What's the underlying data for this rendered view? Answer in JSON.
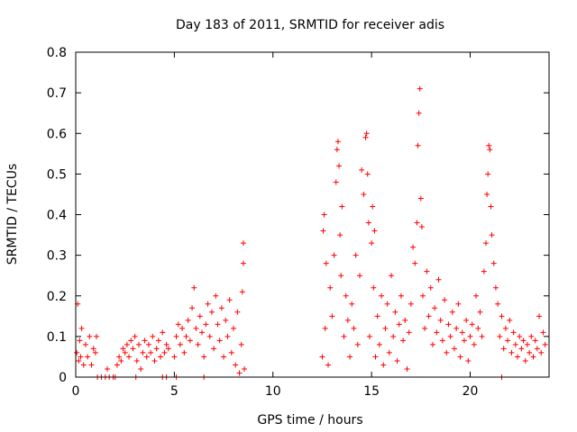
{
  "chart_data": {
    "type": "scatter",
    "title": "Day 183 of 2011, SRMTID for receiver adis",
    "xlabel": "GPS time / hours",
    "ylabel": "SRMTID / TECUs",
    "xlim": [
      0,
      24
    ],
    "ylim": [
      0,
      0.8
    ],
    "xticks": [
      0,
      5,
      10,
      15,
      20
    ],
    "yticks": [
      0,
      0.1,
      0.2,
      0.3,
      0.4,
      0.5,
      0.6,
      0.7,
      0.8
    ],
    "xtick_labels": [
      "0",
      "5",
      "10",
      "15",
      "20"
    ],
    "ytick_labels": [
      "0",
      "0.1",
      "0.2",
      "0.3",
      "0.4",
      "0.5",
      "0.6",
      "0.7",
      "0.8"
    ],
    "grid": false,
    "marker": "+",
    "series": [
      {
        "name": "SRMTID",
        "color": "#ff0000",
        "points": [
          [
            0.05,
            0.06
          ],
          [
            0.1,
            0.18
          ],
          [
            0.15,
            0.04
          ],
          [
            0.2,
            0.09
          ],
          [
            0.25,
            0.05
          ],
          [
            0.3,
            0.12
          ],
          [
            0.4,
            0.03
          ],
          [
            0.5,
            0.08
          ],
          [
            0.6,
            0.05
          ],
          [
            0.7,
            0.1
          ],
          [
            0.8,
            0.03
          ],
          [
            0.9,
            0.07
          ],
          [
            1.0,
            0.06
          ],
          [
            1.05,
            0.1
          ],
          [
            1.1,
            0.0
          ],
          [
            1.3,
            0.0
          ],
          [
            1.5,
            0.0
          ],
          [
            1.6,
            0.02
          ],
          [
            1.7,
            0.0
          ],
          [
            1.9,
            0.0
          ],
          [
            2.0,
            0.0
          ],
          [
            2.1,
            0.03
          ],
          [
            2.2,
            0.05
          ],
          [
            2.3,
            0.04
          ],
          [
            2.4,
            0.07
          ],
          [
            2.5,
            0.06
          ],
          [
            2.6,
            0.08
          ],
          [
            2.7,
            0.05
          ],
          [
            2.8,
            0.09
          ],
          [
            2.9,
            0.07
          ],
          [
            3.0,
            0.1
          ],
          [
            3.1,
            0.04
          ],
          [
            3.2,
            0.08
          ],
          [
            3.3,
            0.02
          ],
          [
            3.4,
            0.06
          ],
          [
            3.5,
            0.09
          ],
          [
            3.6,
            0.05
          ],
          [
            3.7,
            0.08
          ],
          [
            3.8,
            0.06
          ],
          [
            3.9,
            0.1
          ],
          [
            4.0,
            0.04
          ],
          [
            4.1,
            0.07
          ],
          [
            4.2,
            0.09
          ],
          [
            4.3,
            0.05
          ],
          [
            4.4,
            0.11
          ],
          [
            4.5,
            0.06
          ],
          [
            4.6,
            0.08
          ],
          [
            4.7,
            0.07
          ],
          [
            3.05,
            0.0
          ],
          [
            4.4,
            0.0
          ],
          [
            4.6,
            0.0
          ],
          [
            5.1,
            0.0
          ],
          [
            6.5,
            0.0
          ],
          [
            5.0,
            0.05
          ],
          [
            5.1,
            0.1
          ],
          [
            5.2,
            0.13
          ],
          [
            5.3,
            0.08
          ],
          [
            5.4,
            0.12
          ],
          [
            5.5,
            0.06
          ],
          [
            5.6,
            0.1
          ],
          [
            5.7,
            0.14
          ],
          [
            5.8,
            0.09
          ],
          [
            5.9,
            0.17
          ],
          [
            6.0,
            0.22
          ],
          [
            6.1,
            0.12
          ],
          [
            6.2,
            0.08
          ],
          [
            6.3,
            0.15
          ],
          [
            6.4,
            0.11
          ],
          [
            6.5,
            0.05
          ],
          [
            6.6,
            0.13
          ],
          [
            6.7,
            0.18
          ],
          [
            6.8,
            0.1
          ],
          [
            6.9,
            0.16
          ],
          [
            7.0,
            0.07
          ],
          [
            7.1,
            0.2
          ],
          [
            7.2,
            0.13
          ],
          [
            7.3,
            0.09
          ],
          [
            7.4,
            0.17
          ],
          [
            7.5,
            0.05
          ],
          [
            7.6,
            0.14
          ],
          [
            7.7,
            0.1
          ],
          [
            7.8,
            0.19
          ],
          [
            7.9,
            0.06
          ],
          [
            8.0,
            0.12
          ],
          [
            8.1,
            0.03
          ],
          [
            8.2,
            0.16
          ],
          [
            8.3,
            0.01
          ],
          [
            8.4,
            0.08
          ],
          [
            8.45,
            0.21
          ],
          [
            8.5,
            0.33
          ],
          [
            8.5,
            0.28
          ],
          [
            8.55,
            0.02
          ],
          [
            12.5,
            0.05
          ],
          [
            12.55,
            0.36
          ],
          [
            12.6,
            0.4
          ],
          [
            12.65,
            0.12
          ],
          [
            12.7,
            0.28
          ],
          [
            12.8,
            0.03
          ],
          [
            12.9,
            0.22
          ],
          [
            13.0,
            0.15
          ],
          [
            13.1,
            0.3
          ],
          [
            13.2,
            0.48
          ],
          [
            13.25,
            0.56
          ],
          [
            13.3,
            0.58
          ],
          [
            13.35,
            0.52
          ],
          [
            13.4,
            0.35
          ],
          [
            13.45,
            0.25
          ],
          [
            13.5,
            0.42
          ],
          [
            13.6,
            0.1
          ],
          [
            13.7,
            0.2
          ],
          [
            13.8,
            0.14
          ],
          [
            13.9,
            0.05
          ],
          [
            14.0,
            0.18
          ],
          [
            14.1,
            0.12
          ],
          [
            14.2,
            0.3
          ],
          [
            14.3,
            0.08
          ],
          [
            14.4,
            0.25
          ],
          [
            14.5,
            0.51
          ],
          [
            14.6,
            0.45
          ],
          [
            14.7,
            0.59
          ],
          [
            14.75,
            0.6
          ],
          [
            14.8,
            0.5
          ],
          [
            14.85,
            0.38
          ],
          [
            14.9,
            0.1
          ],
          [
            15.0,
            0.33
          ],
          [
            15.05,
            0.42
          ],
          [
            15.1,
            0.22
          ],
          [
            15.15,
            0.36
          ],
          [
            15.2,
            0.05
          ],
          [
            15.3,
            0.15
          ],
          [
            15.4,
            0.08
          ],
          [
            15.5,
            0.2
          ],
          [
            15.6,
            0.03
          ],
          [
            15.7,
            0.12
          ],
          [
            15.8,
            0.18
          ],
          [
            15.9,
            0.06
          ],
          [
            16.0,
            0.25
          ],
          [
            16.1,
            0.1
          ],
          [
            16.2,
            0.16
          ],
          [
            16.3,
            0.04
          ],
          [
            16.4,
            0.13
          ],
          [
            16.5,
            0.2
          ],
          [
            16.6,
            0.09
          ],
          [
            16.7,
            0.14
          ],
          [
            16.8,
            0.02
          ],
          [
            16.9,
            0.11
          ],
          [
            17.0,
            0.18
          ],
          [
            17.1,
            0.32
          ],
          [
            17.2,
            0.28
          ],
          [
            17.3,
            0.38
          ],
          [
            17.35,
            0.57
          ],
          [
            17.4,
            0.65
          ],
          [
            17.45,
            0.71
          ],
          [
            17.5,
            0.44
          ],
          [
            17.55,
            0.37
          ],
          [
            17.6,
            0.2
          ],
          [
            17.7,
            0.12
          ],
          [
            17.8,
            0.26
          ],
          [
            17.9,
            0.15
          ],
          [
            18.0,
            0.22
          ],
          [
            18.1,
            0.08
          ],
          [
            18.2,
            0.17
          ],
          [
            18.3,
            0.11
          ],
          [
            18.4,
            0.24
          ],
          [
            18.5,
            0.14
          ],
          [
            18.6,
            0.09
          ],
          [
            18.7,
            0.19
          ],
          [
            18.8,
            0.06
          ],
          [
            18.9,
            0.13
          ],
          [
            19.0,
            0.1
          ],
          [
            19.1,
            0.16
          ],
          [
            19.2,
            0.07
          ],
          [
            19.3,
            0.12
          ],
          [
            19.4,
            0.18
          ],
          [
            19.5,
            0.05
          ],
          [
            19.6,
            0.11
          ],
          [
            19.7,
            0.09
          ],
          [
            19.8,
            0.14
          ],
          [
            19.9,
            0.04
          ],
          [
            20.0,
            0.1
          ],
          [
            20.1,
            0.13
          ],
          [
            20.2,
            0.08
          ],
          [
            20.3,
            0.2
          ],
          [
            20.4,
            0.12
          ],
          [
            20.5,
            0.16
          ],
          [
            20.6,
            0.1
          ],
          [
            20.7,
            0.26
          ],
          [
            20.8,
            0.33
          ],
          [
            20.85,
            0.45
          ],
          [
            20.9,
            0.5
          ],
          [
            20.95,
            0.57
          ],
          [
            21.0,
            0.56
          ],
          [
            21.05,
            0.42
          ],
          [
            21.1,
            0.35
          ],
          [
            21.2,
            0.28
          ],
          [
            21.3,
            0.22
          ],
          [
            21.4,
            0.18
          ],
          [
            21.5,
            0.1
          ],
          [
            21.6,
            0.15
          ],
          [
            21.7,
            0.07
          ],
          [
            21.8,
            0.12
          ],
          [
            21.9,
            0.09
          ],
          [
            22.0,
            0.14
          ],
          [
            22.1,
            0.06
          ],
          [
            22.2,
            0.11
          ],
          [
            22.3,
            0.08
          ],
          [
            22.4,
            0.05
          ],
          [
            22.5,
            0.1
          ],
          [
            22.6,
            0.07
          ],
          [
            22.7,
            0.09
          ],
          [
            22.8,
            0.04
          ],
          [
            22.9,
            0.08
          ],
          [
            23.0,
            0.06
          ],
          [
            23.1,
            0.1
          ],
          [
            23.2,
            0.05
          ],
          [
            23.3,
            0.09
          ],
          [
            23.4,
            0.07
          ],
          [
            23.5,
            0.15
          ],
          [
            23.6,
            0.06
          ],
          [
            23.7,
            0.11
          ],
          [
            23.8,
            0.08
          ],
          [
            21.6,
            0.0
          ]
        ]
      }
    ]
  }
}
